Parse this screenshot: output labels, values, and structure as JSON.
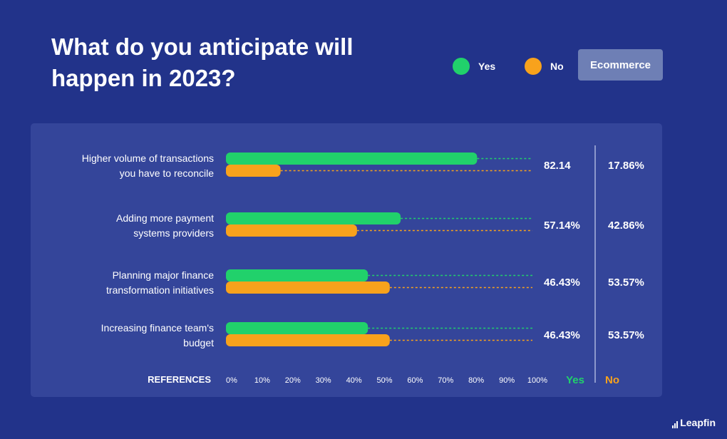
{
  "title": "What do you anticipate will happen in 2023?",
  "legend": [
    {
      "label": "Yes",
      "color": "#21d16b"
    },
    {
      "label": "No",
      "color": "#f8a21c"
    }
  ],
  "segment": "Ecommerce",
  "brand": "Leapfin",
  "colors": {
    "background": "#22338a",
    "panel": "#34459a",
    "yes": "#21d16b",
    "no": "#f8a21c",
    "badge": "#6e7fb5"
  },
  "chart_data": {
    "type": "bar",
    "orientation": "horizontal",
    "categories": [
      "Higher volume of transactions you have to reconcile",
      "Adding more payment systems providers",
      "Planning major finance transformation initiatives",
      "Increasing finance team's budget"
    ],
    "category_lines": [
      [
        "Higher volume of transactions",
        "you have to reconcile"
      ],
      [
        "Adding more payment",
        "systems providers"
      ],
      [
        "Planning major finance",
        "transformation initiatives"
      ],
      [
        "Increasing finance team's",
        "budget"
      ]
    ],
    "series": [
      {
        "name": "Yes",
        "color": "#21d16b",
        "values": [
          82.14,
          57.14,
          46.43,
          46.43
        ],
        "labels": [
          "82.14",
          "57.14%",
          "46.43%",
          "46.43%"
        ]
      },
      {
        "name": "No",
        "color": "#f8a21c",
        "values": [
          17.86,
          42.86,
          53.57,
          53.57
        ],
        "labels": [
          "17.86%",
          "42.86%",
          "53.57%",
          "53.57%"
        ]
      }
    ],
    "xlim": [
      0,
      100
    ],
    "x_ticks": [
      "0%",
      "10%",
      "20%",
      "30%",
      "40%",
      "50%",
      "60%",
      "70%",
      "80%",
      "90%",
      "100%"
    ],
    "axis_title": "REFERENCES",
    "column_headers": [
      "Yes",
      "No"
    ]
  }
}
